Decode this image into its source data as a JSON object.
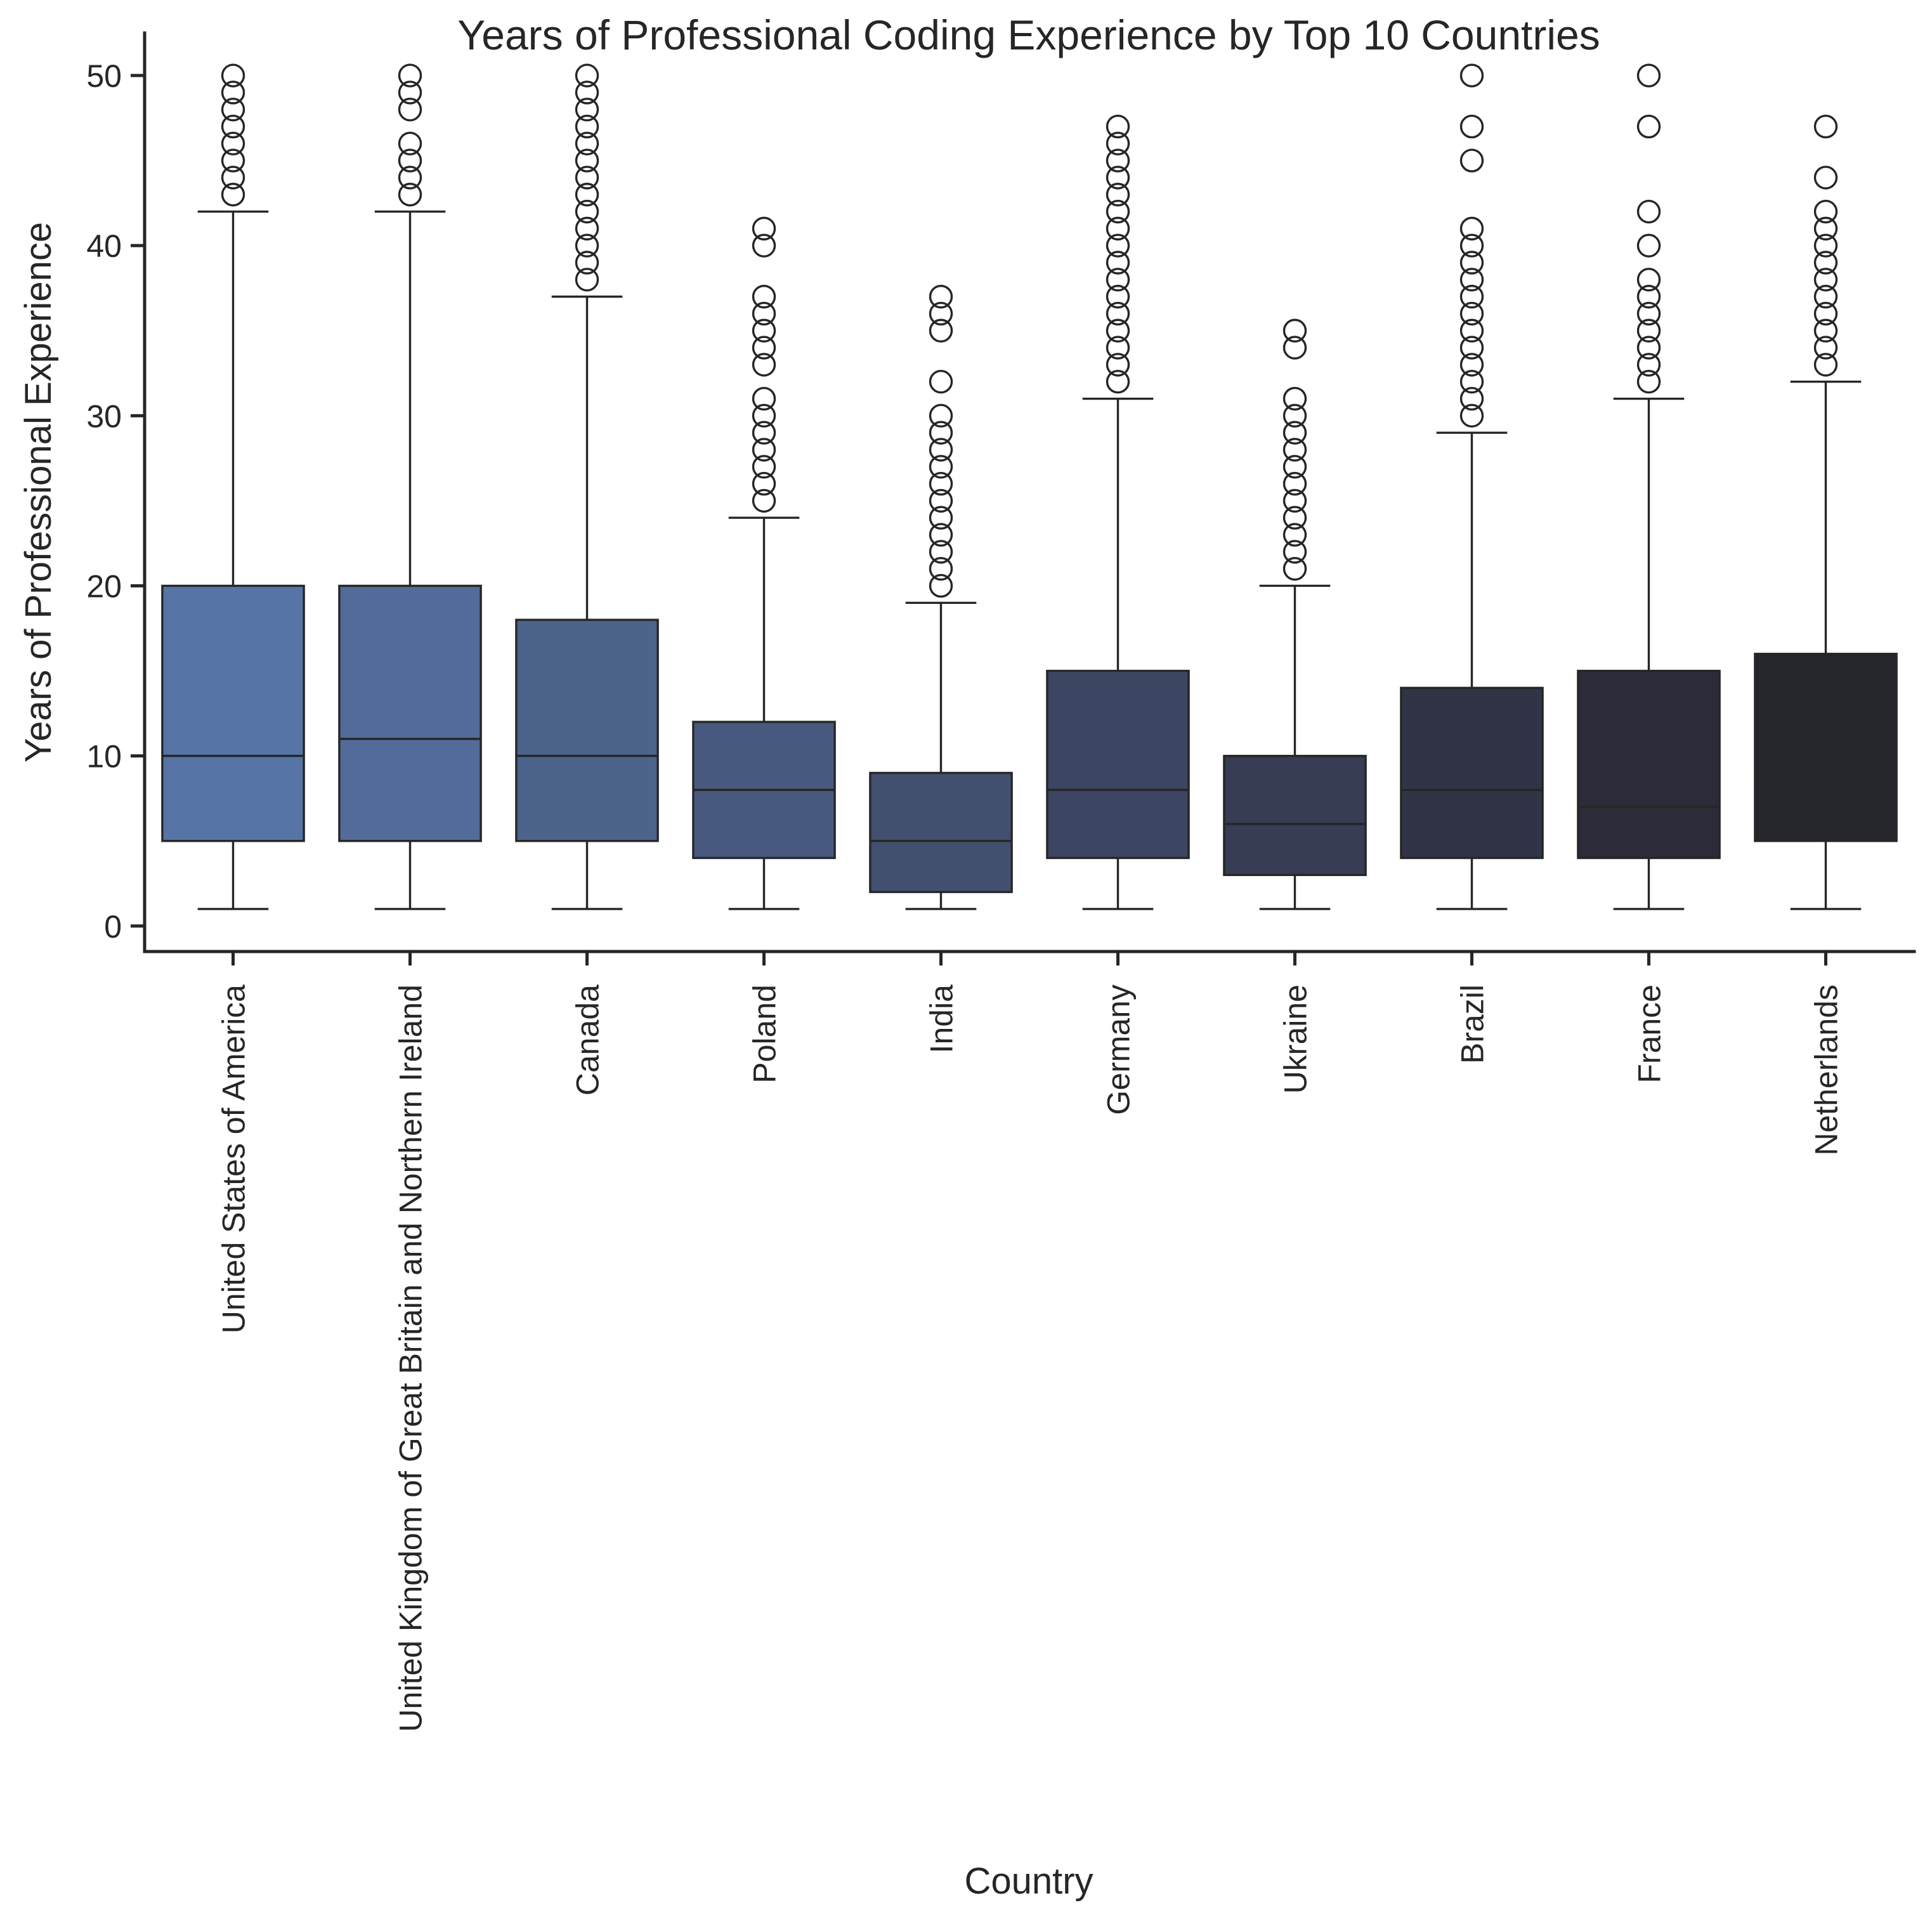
{
  "chart_data": {
    "type": "box",
    "title": "Years of Professional Coding Experience by Top 10 Countries",
    "xlabel": "Country",
    "ylabel": "Years of Professional Experience",
    "ylim": [
      -1.5,
      52.5
    ],
    "yticks": [
      0,
      10,
      20,
      30,
      40,
      50
    ],
    "grid": false,
    "legend": "none",
    "categories": [
      "United States of America",
      "United Kingdom of Great Britain and Northern Ireland",
      "Canada",
      "Poland",
      "India",
      "Germany",
      "Ukraine",
      "Brazil",
      "France",
      "Netherlands"
    ],
    "boxes": [
      {
        "whislo": 1,
        "q1": 5,
        "med": 10,
        "q3": 20,
        "whishi": 42,
        "fliers": [
          43,
          44,
          45,
          46,
          47,
          48,
          49,
          50
        ]
      },
      {
        "whislo": 1,
        "q1": 5,
        "med": 11,
        "q3": 20,
        "whishi": 42,
        "fliers": [
          43,
          44,
          45,
          46,
          48,
          49,
          50
        ]
      },
      {
        "whislo": 1,
        "q1": 5,
        "med": 10,
        "q3": 18,
        "whishi": 37,
        "fliers": [
          38,
          39,
          40,
          41,
          42,
          43,
          44,
          45,
          46,
          47,
          48,
          49,
          50
        ]
      },
      {
        "whislo": 1,
        "q1": 4,
        "med": 8,
        "q3": 12,
        "whishi": 24,
        "fliers": [
          25,
          26,
          27,
          28,
          29,
          30,
          31,
          33,
          34,
          35,
          36,
          37,
          40,
          41
        ]
      },
      {
        "whislo": 1,
        "q1": 2,
        "med": 5,
        "q3": 9,
        "whishi": 19,
        "fliers": [
          20,
          21,
          22,
          23,
          24,
          25,
          26,
          27,
          28,
          29,
          30,
          32,
          35,
          36,
          37
        ]
      },
      {
        "whislo": 1,
        "q1": 4,
        "med": 8,
        "q3": 15,
        "whishi": 31,
        "fliers": [
          32,
          33,
          34,
          35,
          36,
          37,
          38,
          39,
          40,
          41,
          42,
          43,
          44,
          45,
          46,
          47
        ]
      },
      {
        "whislo": 1,
        "q1": 3,
        "med": 6,
        "q3": 10,
        "whishi": 20,
        "fliers": [
          21,
          22,
          23,
          24,
          25,
          26,
          27,
          28,
          29,
          30,
          31,
          34,
          35
        ]
      },
      {
        "whislo": 1,
        "q1": 4,
        "med": 8,
        "q3": 14,
        "whishi": 29,
        "fliers": [
          30,
          31,
          32,
          33,
          34,
          35,
          36,
          37,
          38,
          39,
          40,
          41,
          45,
          47,
          50
        ]
      },
      {
        "whislo": 1,
        "q1": 4,
        "med": 7,
        "q3": 15,
        "whishi": 31,
        "fliers": [
          32,
          33,
          34,
          35,
          36,
          37,
          38,
          40,
          42,
          47,
          50
        ]
      },
      {
        "whislo": 1,
        "q1": 5,
        "med": 9,
        "q3": 16,
        "whishi": 32,
        "fliers": [
          33,
          34,
          35,
          36,
          37,
          38,
          39,
          40,
          41,
          42,
          44,
          47
        ]
      }
    ],
    "colors": [
      "#5675a6",
      "#526b99",
      "#4c638b",
      "#47597e",
      "#425070",
      "#3c4662",
      "#363d54",
      "#313447",
      "#2b2b39",
      "#25262c"
    ],
    "line_color": "#262626"
  }
}
